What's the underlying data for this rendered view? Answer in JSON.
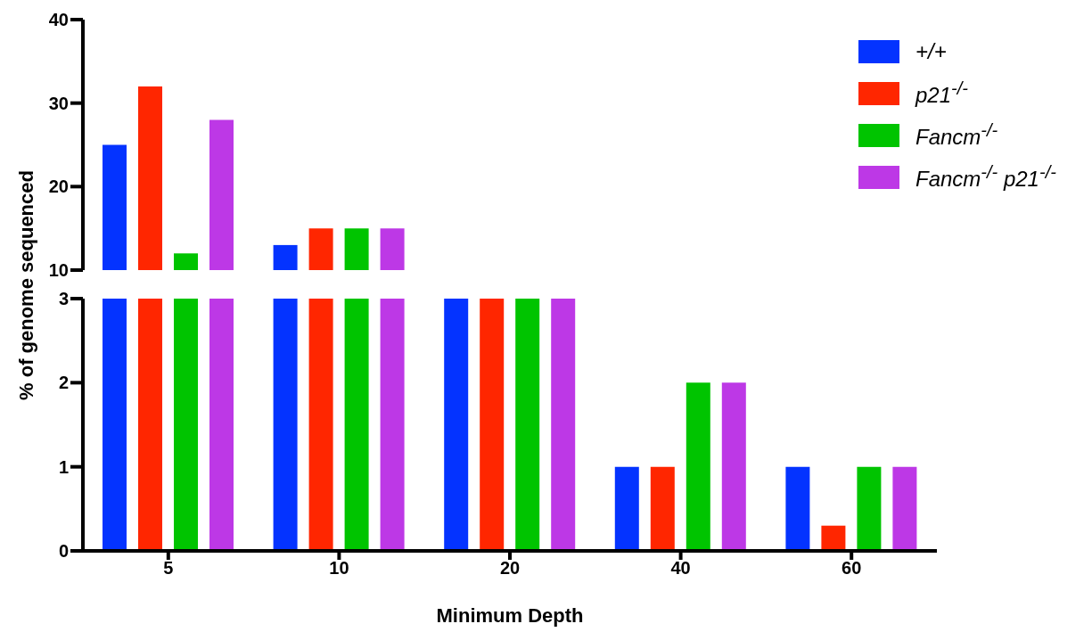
{
  "chart_data": [
    {
      "type": "bar",
      "categories": [
        "5",
        "10",
        "20",
        "40",
        "60"
      ],
      "ylim": [
        10,
        40
      ],
      "yticks": [
        10,
        20,
        30,
        40
      ],
      "tick_labels": "y",
      "legend": "top right",
      "grid": false,
      "series": [
        {
          "name": "+/+",
          "color": "#0433ff",
          "values": [
            25,
            13,
            null,
            null,
            null
          ]
        },
        {
          "name": "p21$^{-/-}$",
          "color": "#ff2600",
          "values": [
            32,
            15,
            null,
            null,
            null
          ]
        },
        {
          "name": "Fancm$^{-/-}$",
          "color": "#00c400",
          "values": [
            12,
            15,
            null,
            null,
            null
          ]
        },
        {
          "name": "Fancm$^{-/-}$ p21$^{-/-}$",
          "color": "#bd38e6",
          "values": [
            28,
            15,
            null,
            null,
            null
          ]
        }
      ]
    },
    {
      "type": "bar",
      "categories": [
        "5",
        "10",
        "20",
        "40",
        "60"
      ],
      "ylim": [
        0,
        3
      ],
      "yticks": [
        0,
        1,
        2,
        3
      ],
      "xlabel": "Minimum Depth",
      "ylabel": "% of genome sequenced",
      "grid": false,
      "series": [
        {
          "color": "#0433ff",
          "values": [
            3,
            3,
            3,
            1,
            1
          ]
        },
        {
          "color": "#ff2600",
          "values": [
            3,
            3,
            3,
            1,
            0.3
          ]
        },
        {
          "color": "#00c400",
          "values": [
            3,
            3,
            3,
            2,
            1
          ]
        },
        {
          "color": "#bd38e6",
          "values": [
            3,
            3,
            3,
            2,
            1
          ]
        }
      ]
    }
  ]
}
